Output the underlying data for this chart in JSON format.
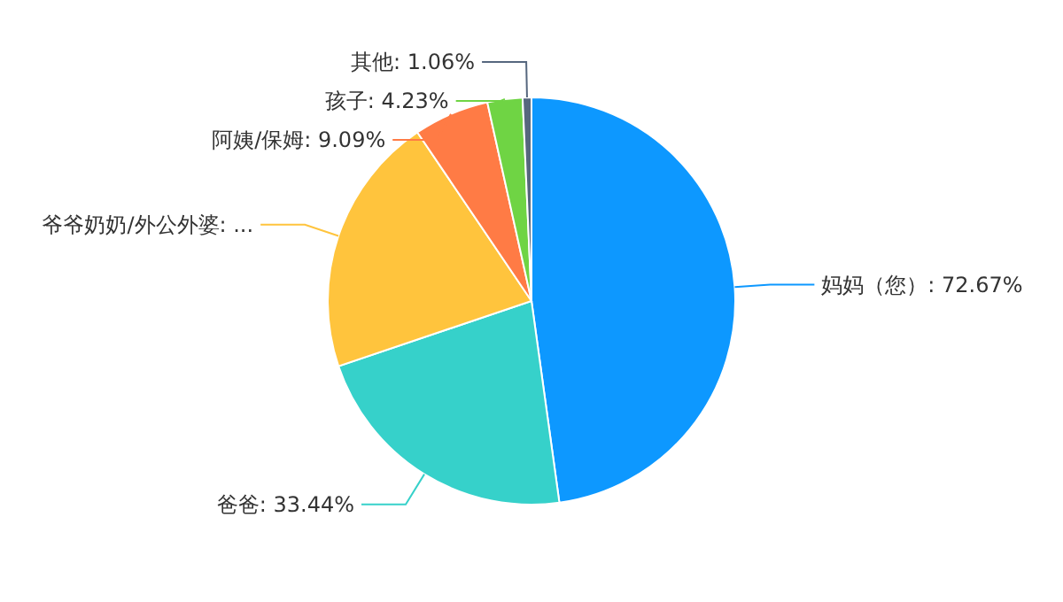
{
  "chart_data": {
    "type": "pie",
    "categories": [
      "妈妈（您）",
      "爸爸",
      "爷爷奶奶/外公外婆",
      "阿姨/保姆",
      "孩子",
      "其他"
    ],
    "values": [
      72.67,
      33.44,
      31.5,
      9.09,
      4.23,
      1.06
    ],
    "value_labels": [
      "72.67%",
      "33.44%",
      "...",
      "9.09%",
      "4.23%",
      "1.06%"
    ],
    "colors": [
      "#0d98ff",
      "#36d1ca",
      "#ffc43d",
      "#ff7b45",
      "#6fd444",
      "#56677e"
    ]
  }
}
